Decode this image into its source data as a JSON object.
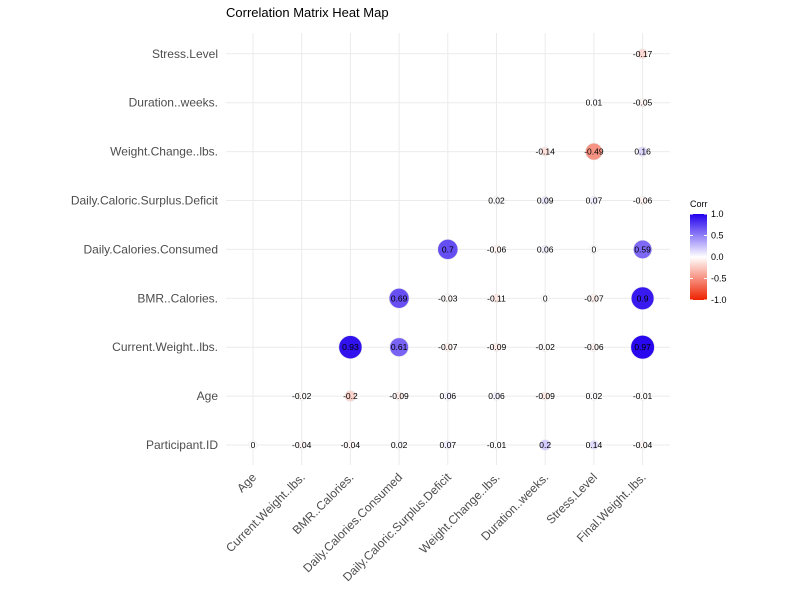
{
  "chart_data": {
    "type": "heatmap",
    "title": "Correlation Matrix Heat Map",
    "x_labels": [
      "Age",
      "Current.Weight..lbs.",
      "BMR..Calories.",
      "Daily.Calories.Consumed",
      "Daily.Caloric.Surplus.Deficit",
      "Weight.Change..lbs.",
      "Duration..weeks.",
      "Stress.Level",
      "Final.Weight..lbs."
    ],
    "y_labels": [
      "Participant.ID",
      "Age",
      "Current.Weight..lbs.",
      "BMR..Calories.",
      "Daily.Calories.Consumed",
      "Daily.Caloric.Surplus.Deficit",
      "Weight.Change..lbs.",
      "Duration..weeks.",
      "Stress.Level"
    ],
    "cells": [
      {
        "x": "Age",
        "y": "Participant.ID",
        "value": 0,
        "label": "0"
      },
      {
        "x": "Current.Weight..lbs.",
        "y": "Participant.ID",
        "value": -0.04,
        "label": "-0.04"
      },
      {
        "x": "BMR..Calories.",
        "y": "Participant.ID",
        "value": -0.04,
        "label": "-0.04"
      },
      {
        "x": "Daily.Calories.Consumed",
        "y": "Participant.ID",
        "value": 0.02,
        "label": "0.02"
      },
      {
        "x": "Daily.Caloric.Surplus.Deficit",
        "y": "Participant.ID",
        "value": 0.07,
        "label": "0.07"
      },
      {
        "x": "Weight.Change..lbs.",
        "y": "Participant.ID",
        "value": -0.01,
        "label": "-0.01"
      },
      {
        "x": "Duration..weeks.",
        "y": "Participant.ID",
        "value": 0.2,
        "label": "0.2"
      },
      {
        "x": "Stress.Level",
        "y": "Participant.ID",
        "value": 0.14,
        "label": "0.14"
      },
      {
        "x": "Final.Weight..lbs.",
        "y": "Participant.ID",
        "value": -0.04,
        "label": "-0.04"
      },
      {
        "x": "Current.Weight..lbs.",
        "y": "Age",
        "value": -0.02,
        "label": "-0.02"
      },
      {
        "x": "BMR..Calories.",
        "y": "Age",
        "value": -0.2,
        "label": "-0.2"
      },
      {
        "x": "Daily.Calories.Consumed",
        "y": "Age",
        "value": -0.09,
        "label": "-0.09"
      },
      {
        "x": "Daily.Caloric.Surplus.Deficit",
        "y": "Age",
        "value": 0.06,
        "label": "0.06"
      },
      {
        "x": "Weight.Change..lbs.",
        "y": "Age",
        "value": 0.06,
        "label": "0.06"
      },
      {
        "x": "Duration..weeks.",
        "y": "Age",
        "value": -0.09,
        "label": "-0.09"
      },
      {
        "x": "Stress.Level",
        "y": "Age",
        "value": 0.02,
        "label": "0.02"
      },
      {
        "x": "Final.Weight..lbs.",
        "y": "Age",
        "value": -0.01,
        "label": "-0.01"
      },
      {
        "x": "BMR..Calories.",
        "y": "Current.Weight..lbs.",
        "value": 0.93,
        "label": "0.93"
      },
      {
        "x": "Daily.Calories.Consumed",
        "y": "Current.Weight..lbs.",
        "value": 0.61,
        "label": "0.61"
      },
      {
        "x": "Daily.Caloric.Surplus.Deficit",
        "y": "Current.Weight..lbs.",
        "value": -0.07,
        "label": "-0.07"
      },
      {
        "x": "Weight.Change..lbs.",
        "y": "Current.Weight..lbs.",
        "value": -0.09,
        "label": "-0.09"
      },
      {
        "x": "Duration..weeks.",
        "y": "Current.Weight..lbs.",
        "value": -0.02,
        "label": "-0.02"
      },
      {
        "x": "Stress.Level",
        "y": "Current.Weight..lbs.",
        "value": -0.06,
        "label": "-0.06"
      },
      {
        "x": "Final.Weight..lbs.",
        "y": "Current.Weight..lbs.",
        "value": 0.97,
        "label": "0.97"
      },
      {
        "x": "Daily.Calories.Consumed",
        "y": "BMR..Calories.",
        "value": 0.69,
        "label": "0.69"
      },
      {
        "x": "Daily.Caloric.Surplus.Deficit",
        "y": "BMR..Calories.",
        "value": -0.03,
        "label": "-0.03"
      },
      {
        "x": "Weight.Change..lbs.",
        "y": "BMR..Calories.",
        "value": -0.11,
        "label": "-0.11"
      },
      {
        "x": "Duration..weeks.",
        "y": "BMR..Calories.",
        "value": 0,
        "label": "0"
      },
      {
        "x": "Stress.Level",
        "y": "BMR..Calories.",
        "value": -0.07,
        "label": "-0.07"
      },
      {
        "x": "Final.Weight..lbs.",
        "y": "BMR..Calories.",
        "value": 0.9,
        "label": "0.9"
      },
      {
        "x": "Daily.Caloric.Surplus.Deficit",
        "y": "Daily.Calories.Consumed",
        "value": 0.7,
        "label": "0.7"
      },
      {
        "x": "Weight.Change..lbs.",
        "y": "Daily.Calories.Consumed",
        "value": -0.06,
        "label": "-0.06"
      },
      {
        "x": "Duration..weeks.",
        "y": "Daily.Calories.Consumed",
        "value": 0.06,
        "label": "0.06"
      },
      {
        "x": "Stress.Level",
        "y": "Daily.Calories.Consumed",
        "value": 0,
        "label": "0"
      },
      {
        "x": "Final.Weight..lbs.",
        "y": "Daily.Calories.Consumed",
        "value": 0.59,
        "label": "0.59"
      },
      {
        "x": "Weight.Change..lbs.",
        "y": "Daily.Caloric.Surplus.Deficit",
        "value": 0.02,
        "label": "0.02"
      },
      {
        "x": "Duration..weeks.",
        "y": "Daily.Caloric.Surplus.Deficit",
        "value": 0.09,
        "label": "0.09"
      },
      {
        "x": "Stress.Level",
        "y": "Daily.Caloric.Surplus.Deficit",
        "value": 0.07,
        "label": "0.07"
      },
      {
        "x": "Final.Weight..lbs.",
        "y": "Daily.Caloric.Surplus.Deficit",
        "value": -0.06,
        "label": "-0.06"
      },
      {
        "x": "Duration..weeks.",
        "y": "Weight.Change..lbs.",
        "value": -0.14,
        "label": "-0.14"
      },
      {
        "x": "Stress.Level",
        "y": "Weight.Change..lbs.",
        "value": -0.49,
        "label": "-0.49"
      },
      {
        "x": "Final.Weight..lbs.",
        "y": "Weight.Change..lbs.",
        "value": 0.16,
        "label": "0.16"
      },
      {
        "x": "Stress.Level",
        "y": "Duration..weeks.",
        "value": 0.01,
        "label": "0.01"
      },
      {
        "x": "Final.Weight..lbs.",
        "y": "Duration..weeks.",
        "value": -0.05,
        "label": "-0.05"
      },
      {
        "x": "Final.Weight..lbs.",
        "y": "Stress.Level",
        "value": -0.17,
        "label": "-0.17"
      }
    ],
    "color_scale": {
      "low": "#ee2200",
      "mid": "#ffffff",
      "high": "#2200ee",
      "range": [
        -1,
        1
      ]
    },
    "legend": {
      "title": "Corr",
      "ticks": [
        1.0,
        0.5,
        0.0,
        -0.5,
        -1.0
      ],
      "tick_labels": [
        "1.0",
        "0.5",
        "0.0",
        "-0.5",
        "-1.0"
      ],
      "position": "right"
    },
    "grid": true
  }
}
